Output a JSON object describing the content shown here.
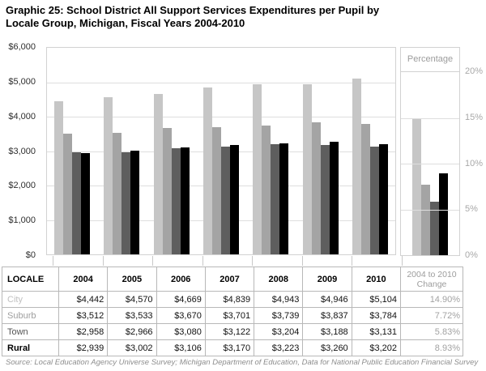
{
  "title": "Graphic 25: School District All Support Services Expenditures per Pupil by\nLocale Group, Michigan, Fiscal Years 2004-2010",
  "source": "Source: Local Education Agency Universe Survey; Michigan Department of Education, Data for National Public Education Financial Survey",
  "chart_data": {
    "type": "bar",
    "title": "School District All Support Services Expenditures per Pupil by Locale Group, Michigan, Fiscal Years 2004-2010",
    "categories": [
      "2004",
      "2005",
      "2006",
      "2007",
      "2008",
      "2009",
      "2010"
    ],
    "series": [
      {
        "name": "City",
        "color": "#c6c6c6",
        "values": [
          4442,
          4570,
          4669,
          4839,
          4943,
          4946,
          5104
        ],
        "change_2004_2010_pct": 14.9
      },
      {
        "name": "Suburb",
        "color": "#a4a4a4",
        "values": [
          3512,
          3533,
          3670,
          3701,
          3739,
          3837,
          3784
        ],
        "change_2004_2010_pct": 7.72
      },
      {
        "name": "Town",
        "color": "#5e5e5e",
        "values": [
          2958,
          2966,
          3080,
          3122,
          3204,
          3188,
          3131
        ],
        "change_2004_2010_pct": 5.83
      },
      {
        "name": "Rural",
        "color": "#000000",
        "values": [
          2939,
          3002,
          3106,
          3170,
          3223,
          3260,
          3202
        ],
        "change_2004_2010_pct": 8.93
      }
    ],
    "left_axis": {
      "ticks": [
        "$0",
        "$1,000",
        "$2,000",
        "$3,000",
        "$4,000",
        "$5,000",
        "$6,000"
      ],
      "min": 0,
      "max": 6000,
      "grid": true
    },
    "right_panel": {
      "title": "Percentage",
      "ticks": [
        "0%",
        "5%",
        "10%",
        "15%",
        "20%"
      ],
      "min": 0,
      "max": 20,
      "bar_group_label": "2004 to 2010 Change"
    },
    "legend_position": "table-row-labels"
  },
  "table": {
    "locale_header": "LOCALE",
    "change_header": "2004 to 2010\nChange",
    "rows": [
      {
        "label": "City",
        "label_color": "#c0c0c0",
        "bold": false,
        "values": [
          "$4,442",
          "$4,570",
          "$4,669",
          "$4,839",
          "$4,943",
          "$4,946",
          "$5,104"
        ],
        "change": "14.90%"
      },
      {
        "label": "Suburb",
        "label_color": "#9e9e9e",
        "bold": false,
        "values": [
          "$3,512",
          "$3,533",
          "$3,670",
          "$3,701",
          "$3,739",
          "$3,837",
          "$3,784"
        ],
        "change": "7.72%"
      },
      {
        "label": "Town",
        "label_color": "#545454",
        "bold": false,
        "values": [
          "$2,958",
          "$2,966",
          "$3,080",
          "$3,122",
          "$3,204",
          "$3,188",
          "$3,131"
        ],
        "change": "5.83%"
      },
      {
        "label": "Rural",
        "label_color": "#000000",
        "bold": true,
        "values": [
          "$2,939",
          "$3,002",
          "$3,106",
          "$3,170",
          "$3,223",
          "$3,260",
          "$3,202"
        ],
        "change": "8.93%"
      }
    ]
  }
}
